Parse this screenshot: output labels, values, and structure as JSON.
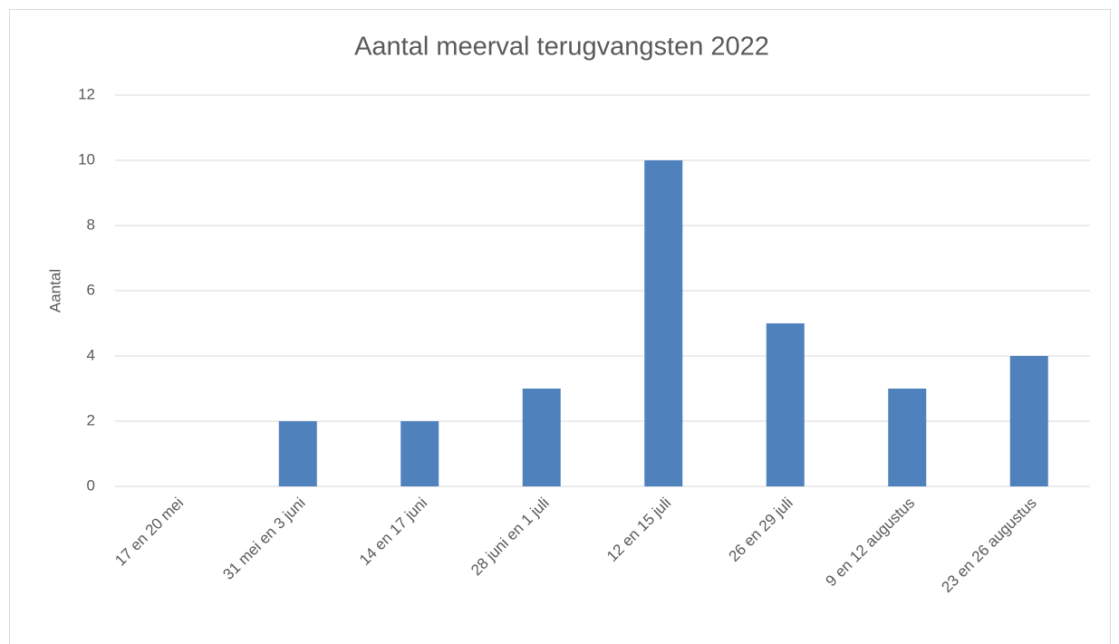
{
  "chart_data": {
    "type": "bar",
    "title": "Aantal meerval terugvangsten 2022",
    "y_label": "Aantal",
    "categories": [
      "17 en 20 mei",
      "31 mei en 3 juni",
      "14 en 17 juni",
      "28 juni en 1 juli",
      "12 en 15 juli",
      "26 en 29 juli",
      "9 en 12 augustus",
      "23 en 26 augustus"
    ],
    "values": [
      0,
      2,
      2,
      3,
      10,
      5,
      3,
      4
    ],
    "color": "#4f81bd",
    "ylim": [
      0,
      12
    ],
    "yticks": [
      0,
      2,
      4,
      6,
      8,
      10,
      12
    ],
    "grid": true
  }
}
